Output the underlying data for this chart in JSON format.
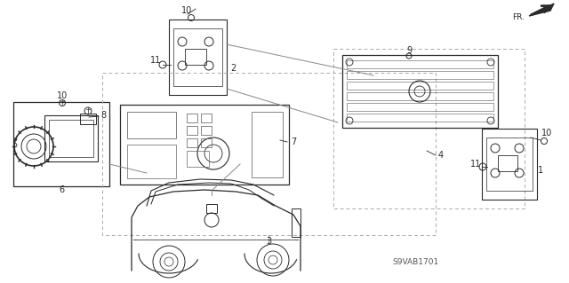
{
  "bg_color": "#ffffff",
  "fig_width": 6.4,
  "fig_height": 3.19,
  "dpi": 100,
  "diagram_code": "S9VAB1701",
  "line_color": "#2a2a2a",
  "gray_color": "#888888",
  "light_gray": "#cccccc"
}
